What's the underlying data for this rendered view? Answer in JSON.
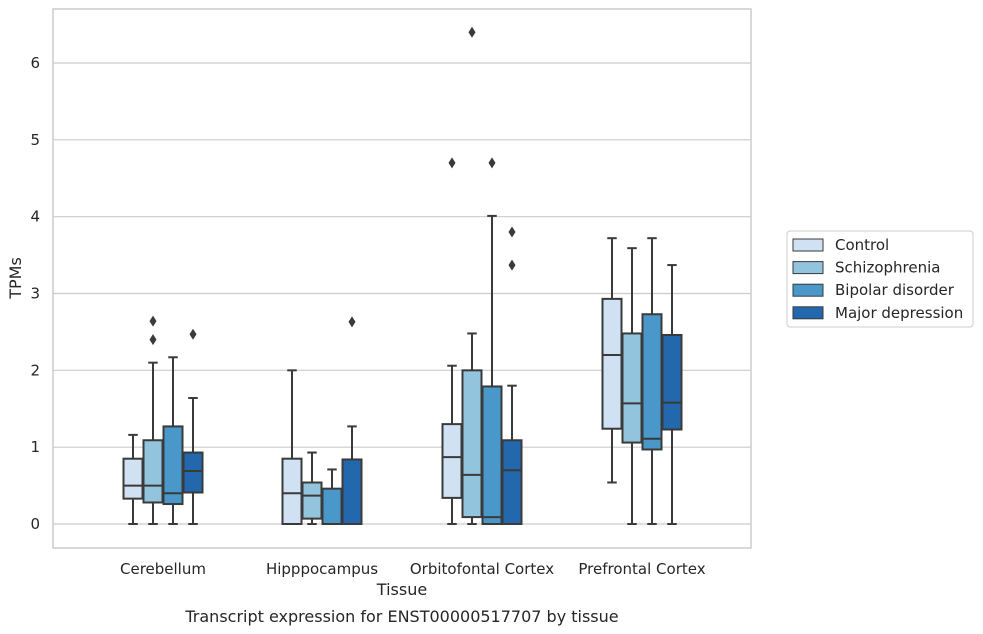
{
  "chart_data": {
    "type": "box",
    "xlabel": "Tissue",
    "ylabel": "TPMs",
    "caption": "Transcript expression for ENST00000517707 by tissue",
    "ylim": [
      -0.3,
      6.7
    ],
    "yticks": [
      0,
      1,
      2,
      3,
      4,
      5,
      6
    ],
    "ytick_labels": [
      "0",
      "1",
      "2",
      "3",
      "4",
      "5",
      "6"
    ],
    "grid": true,
    "legend_position": "right",
    "categories": [
      "Cerebellum",
      "Hipppocampus",
      "Orbitofontal Cortex",
      "Prefrontal Cortex"
    ],
    "series": [
      {
        "name": "Control",
        "color": "#cfe1f2",
        "boxes": [
          {
            "whislo": 0.0,
            "q1": 0.33,
            "med": 0.5,
            "q3": 0.85,
            "whishi": 1.16,
            "fliers": []
          },
          {
            "whislo": 0.0,
            "q1": 0.0,
            "med": 0.4,
            "q3": 0.85,
            "whishi": 2.0,
            "fliers": []
          },
          {
            "whislo": 0.0,
            "q1": 0.34,
            "med": 0.87,
            "q3": 1.3,
            "whishi": 2.06,
            "fliers": [
              4.7
            ]
          },
          {
            "whislo": 0.54,
            "q1": 1.24,
            "med": 2.2,
            "q3": 2.93,
            "whishi": 3.72,
            "fliers": []
          }
        ]
      },
      {
        "name": "Schizophrenia",
        "color": "#93c4de",
        "boxes": [
          {
            "whislo": 0.0,
            "q1": 0.28,
            "med": 0.5,
            "q3": 1.09,
            "whishi": 2.1,
            "fliers": [
              2.64,
              2.4
            ]
          },
          {
            "whislo": 0.0,
            "q1": 0.07,
            "med": 0.37,
            "q3": 0.54,
            "whishi": 0.93,
            "fliers": []
          },
          {
            "whislo": 0.0,
            "q1": 0.09,
            "med": 0.64,
            "q3": 2.0,
            "whishi": 2.48,
            "fliers": [
              6.4
            ]
          },
          {
            "whislo": 0.0,
            "q1": 1.06,
            "med": 1.57,
            "q3": 2.48,
            "whishi": 3.59,
            "fliers": []
          }
        ]
      },
      {
        "name": "Bipolar disorder",
        "color": "#4a98c9",
        "boxes": [
          {
            "whislo": 0.0,
            "q1": 0.26,
            "med": 0.4,
            "q3": 1.27,
            "whishi": 2.17,
            "fliers": []
          },
          {
            "whislo": 0.0,
            "q1": 0.0,
            "med": 0.0,
            "q3": 0.46,
            "whishi": 0.71,
            "fliers": []
          },
          {
            "whislo": 0.0,
            "q1": 0.0,
            "med": 0.09,
            "q3": 1.79,
            "whishi": 4.01,
            "fliers": [
              4.7
            ]
          },
          {
            "whislo": 0.0,
            "q1": 0.97,
            "med": 1.11,
            "q3": 2.73,
            "whishi": 3.72,
            "fliers": []
          }
        ]
      },
      {
        "name": "Major depression",
        "color": "#2367ac",
        "boxes": [
          {
            "whislo": 0.0,
            "q1": 0.41,
            "med": 0.69,
            "q3": 0.93,
            "whishi": 1.64,
            "fliers": [
              2.47
            ]
          },
          {
            "whislo": 0.0,
            "q1": 0.0,
            "med": 0.0,
            "q3": 0.84,
            "whishi": 1.27,
            "fliers": [
              2.63
            ]
          },
          {
            "whislo": 0.0,
            "q1": 0.0,
            "med": 0.7,
            "q3": 1.09,
            "whishi": 1.8,
            "fliers": [
              3.8,
              3.37
            ]
          },
          {
            "whislo": 0.0,
            "q1": 1.23,
            "med": 1.58,
            "q3": 2.46,
            "whishi": 3.37,
            "fliers": []
          }
        ]
      }
    ]
  }
}
